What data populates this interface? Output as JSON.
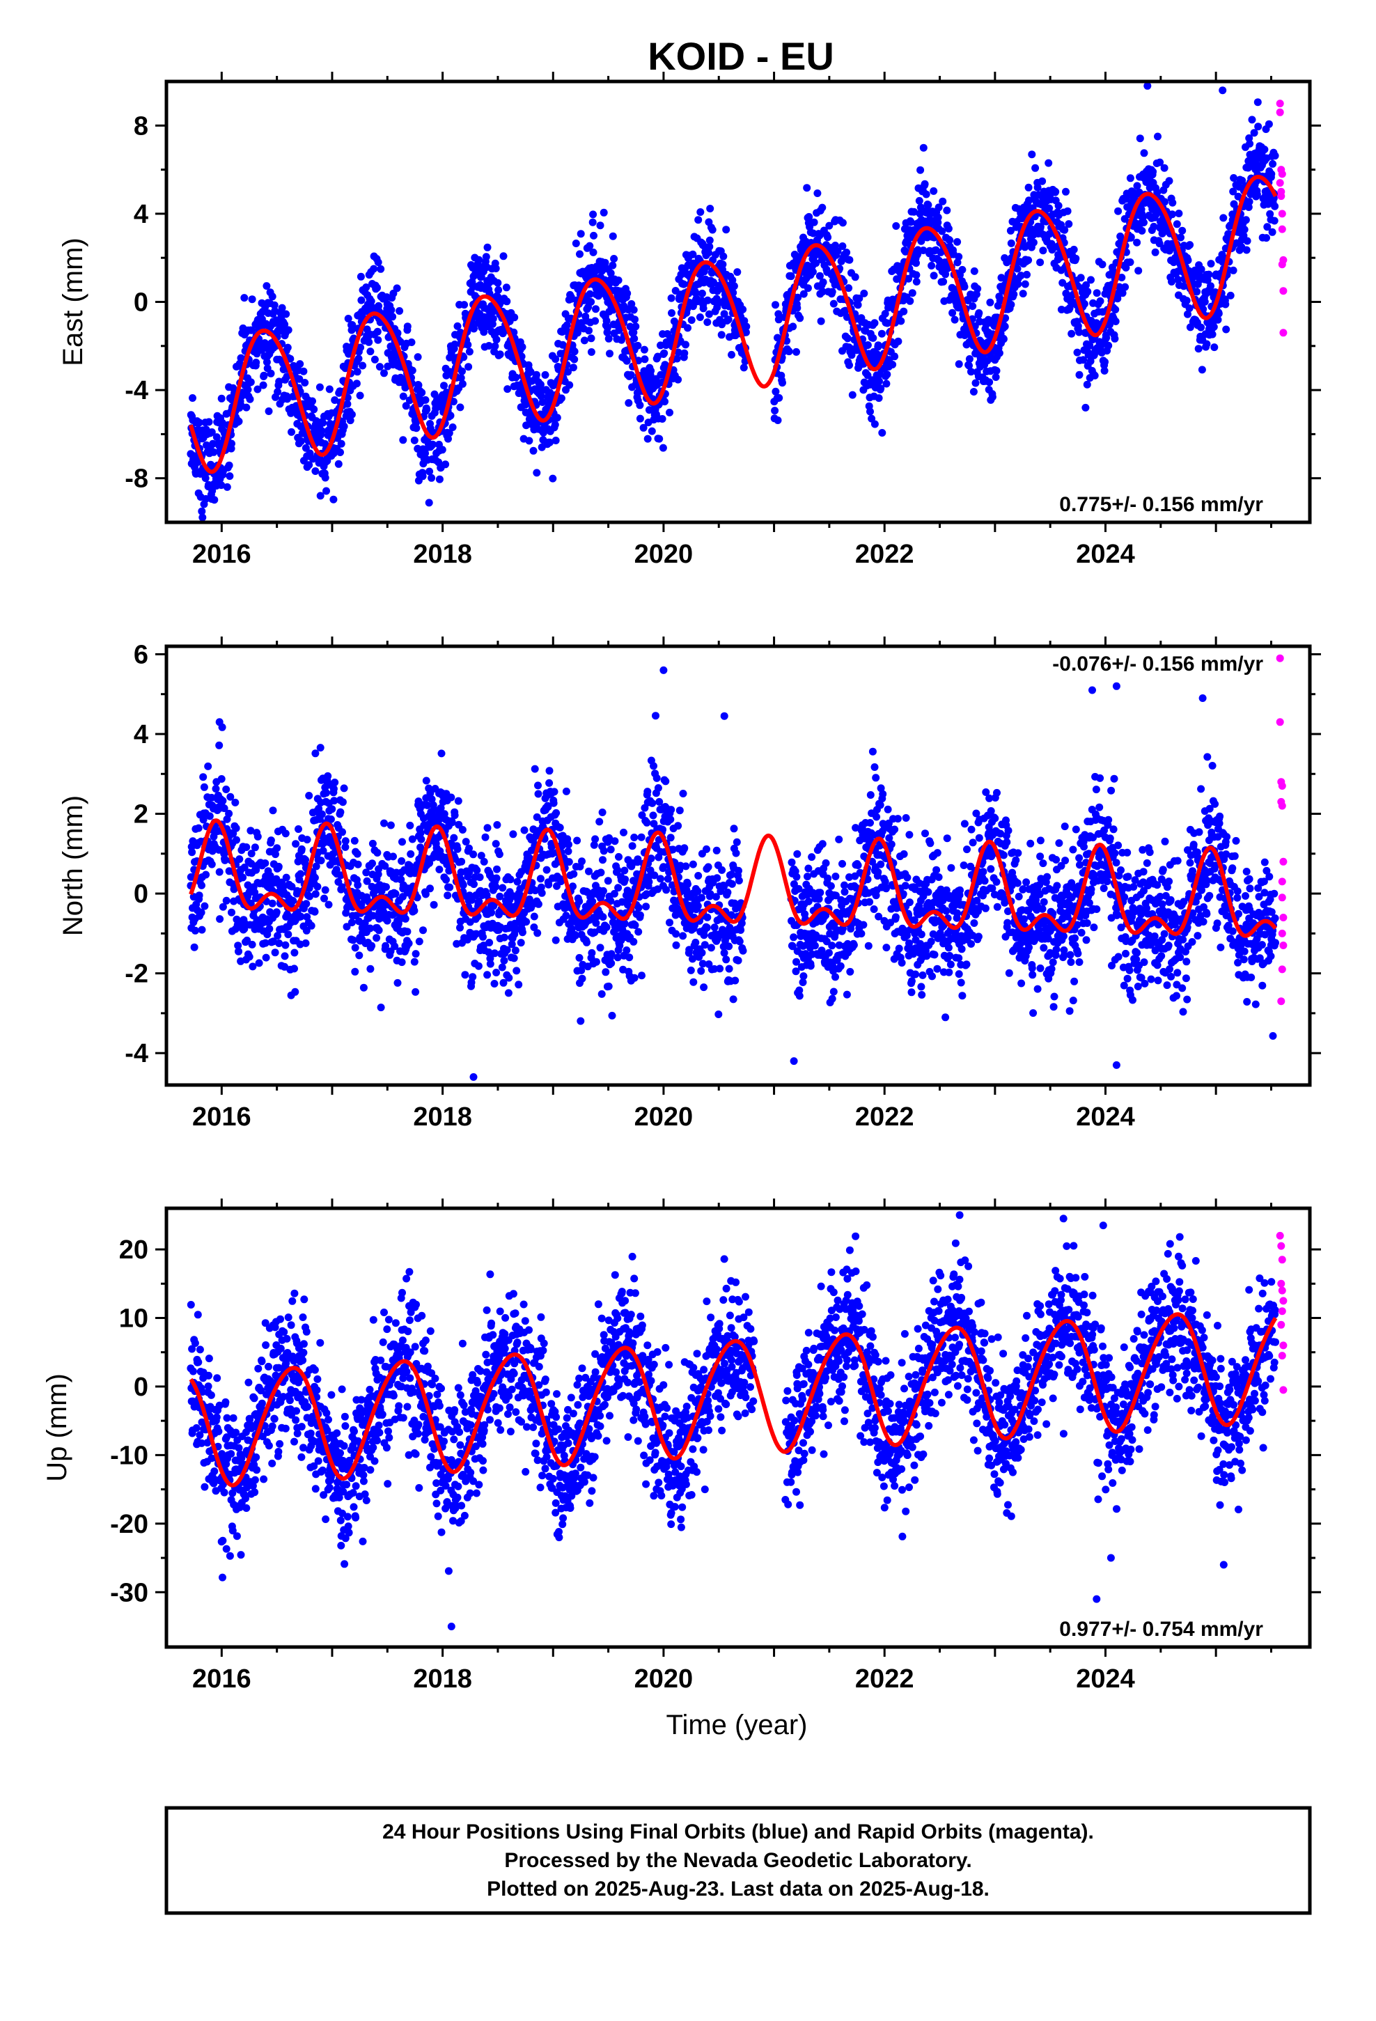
{
  "title": "KOID - EU",
  "xlabel": "Time (year)",
  "colors": {
    "final": "#0000ff",
    "rapid": "#ff00ff",
    "model": "#ff0000"
  },
  "footer": {
    "line1": "24 Hour Positions Using Final Orbits (blue) and Rapid Orbits (magenta).",
    "line2": "Processed by the Nevada Geodetic Laboratory.",
    "line3": "Plotted on 2025-Aug-23. Last data on 2025-Aug-18."
  },
  "chart_data": [
    {
      "type": "scatter",
      "name": "east",
      "ylabel": "East (mm)",
      "rate_text": "0.775+/- 0.156 mm/yr",
      "rate_position": "bottom-right",
      "xlim": [
        2015.5,
        2025.85
      ],
      "ylim": [
        -10,
        10
      ],
      "xticks": [
        2016,
        2018,
        2020,
        2022,
        2024
      ],
      "yticks": [
        -8,
        -4,
        0,
        4,
        8
      ],
      "data_start": 2015.72,
      "data_end": 2025.54,
      "rapid_start": 2025.55,
      "rapid_end": 2025.63,
      "model": {
        "offset": -4.6,
        "rate": 0.775,
        "annual_amp": 3.0,
        "annual_phase": 2016.4,
        "semiannual_amp": 0.3,
        "semiannual_phase": 2016.2
      },
      "scatter_sd": 1.1,
      "gaps": [
        [
          2020.75,
          2021.0
        ]
      ],
      "outliers": [
        [
          2015.82,
          -9.5
        ],
        [
          2016.05,
          -8.4
        ],
        [
          2023.82,
          -4.8
        ],
        [
          2024.38,
          9.8
        ],
        [
          2025.06,
          9.6
        ]
      ],
      "rapid_points": [
        [
          2025.58,
          9.0
        ],
        [
          2025.58,
          8.6
        ],
        [
          2025.59,
          6.0
        ],
        [
          2025.6,
          5.8
        ],
        [
          2025.59,
          5.0
        ],
        [
          2025.6,
          4.0
        ],
        [
          2025.6,
          3.3
        ],
        [
          2025.61,
          1.9
        ],
        [
          2025.6,
          1.7
        ],
        [
          2025.61,
          0.5
        ],
        [
          2025.61,
          -1.4
        ],
        [
          2025.58,
          5.4
        ],
        [
          2025.59,
          4.8
        ]
      ]
    },
    {
      "type": "scatter",
      "name": "north",
      "ylabel": "North (mm)",
      "rate_text": "-0.076+/- 0.156 mm/yr",
      "rate_position": "top-right",
      "xlim": [
        2015.5,
        2025.85
      ],
      "ylim": [
        -4.8,
        6.2
      ],
      "xticks": [
        2016,
        2018,
        2020,
        2022,
        2024
      ],
      "yticks": [
        -4,
        -2,
        0,
        2,
        4,
        6
      ],
      "data_start": 2015.72,
      "data_end": 2025.54,
      "rapid_start": 2025.55,
      "rapid_end": 2025.63,
      "model": {
        "offset": 0.4,
        "rate": -0.076,
        "annual_amp": 0.9,
        "annual_phase": 2015.95,
        "semiannual_amp": 0.55,
        "semiannual_phase": 2015.95
      },
      "scatter_sd": 0.85,
      "gaps": [
        [
          2020.72,
          2021.15
        ]
      ],
      "outliers": [
        [
          2015.98,
          4.3
        ],
        [
          2018.28,
          -4.6
        ],
        [
          2020.0,
          5.6
        ],
        [
          2020.55,
          4.45
        ],
        [
          2023.88,
          5.1
        ],
        [
          2024.1,
          5.2
        ],
        [
          2024.1,
          -4.3
        ],
        [
          2024.88,
          4.9
        ],
        [
          2021.18,
          -4.2
        ]
      ],
      "rapid_points": [
        [
          2025.58,
          5.9
        ],
        [
          2025.58,
          4.3
        ],
        [
          2025.59,
          2.8
        ],
        [
          2025.6,
          2.7
        ],
        [
          2025.59,
          2.3
        ],
        [
          2025.6,
          2.2
        ],
        [
          2025.61,
          0.8
        ],
        [
          2025.6,
          0.3
        ],
        [
          2025.6,
          -0.1
        ],
        [
          2025.61,
          -0.6
        ],
        [
          2025.6,
          -1.0
        ],
        [
          2025.61,
          -1.3
        ],
        [
          2025.6,
          -1.9
        ],
        [
          2025.59,
          -2.7
        ]
      ]
    },
    {
      "type": "scatter",
      "name": "up",
      "ylabel": "Up (mm)",
      "rate_text": "0.977+/- 0.754 mm/yr",
      "rate_position": "bottom-right",
      "xlim": [
        2015.5,
        2025.85
      ],
      "ylim": [
        -38,
        26
      ],
      "xticks": [
        2016,
        2018,
        2020,
        2022,
        2024
      ],
      "yticks": [
        -30,
        -20,
        -10,
        0,
        10,
        20
      ],
      "data_start": 2015.72,
      "data_end": 2025.54,
      "rapid_start": 2025.55,
      "rapid_end": 2025.63,
      "model": {
        "offset": -6.0,
        "rate": 0.977,
        "annual_amp": 8.2,
        "annual_phase": 2016.62,
        "semiannual_amp": 0.8,
        "semiannual_phase": 2016.3
      },
      "scatter_sd": 5.0,
      "gaps": [
        [
          2020.82,
          2021.1
        ]
      ],
      "outliers": [
        [
          2018.08,
          -35.0
        ],
        [
          2022.68,
          25.0
        ],
        [
          2023.62,
          24.5
        ],
        [
          2023.92,
          -31.0
        ],
        [
          2024.05,
          -25.0
        ],
        [
          2023.98,
          23.5
        ],
        [
          2025.07,
          -26.0
        ]
      ],
      "rapid_points": [
        [
          2025.58,
          22.0
        ],
        [
          2025.59,
          20.5
        ],
        [
          2025.6,
          18.5
        ],
        [
          2025.59,
          15.0
        ],
        [
          2025.6,
          14.0
        ],
        [
          2025.61,
          12.5
        ],
        [
          2025.6,
          11.0
        ],
        [
          2025.59,
          9.0
        ],
        [
          2025.61,
          6.0
        ],
        [
          2025.6,
          4.5
        ],
        [
          2025.61,
          -0.5
        ]
      ]
    }
  ]
}
